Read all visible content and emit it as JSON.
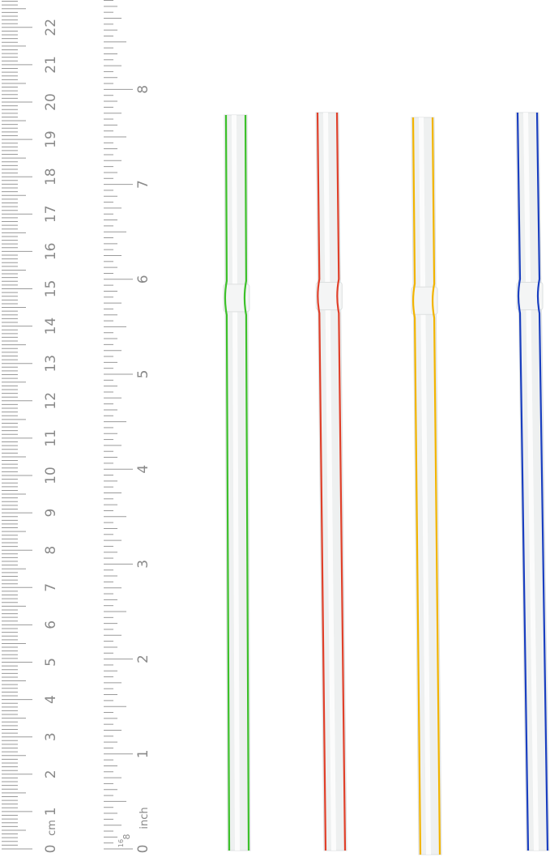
{
  "cm_ruler": {
    "unit_label": "cm",
    "labels": [
      "0",
      "1",
      "2",
      "3",
      "4",
      "5",
      "6",
      "7",
      "8",
      "9",
      "10",
      "11",
      "12",
      "13",
      "14",
      "15",
      "16",
      "17",
      "18",
      "19",
      "20",
      "21",
      "22"
    ]
  },
  "inch_ruler": {
    "unit_label": "inch",
    "fraction_labels": [
      "16",
      "8"
    ],
    "labels": [
      "0",
      "1",
      "2",
      "3",
      "4",
      "5",
      "6",
      "7",
      "8"
    ]
  },
  "straws": [
    {
      "color_name": "green",
      "stripe": "#3cc02a"
    },
    {
      "color_name": "red",
      "stripe": "#e0402a"
    },
    {
      "color_name": "yellow",
      "stripe": "#f2b400"
    },
    {
      "color_name": "blue",
      "stripe": "#1a3fc0"
    }
  ],
  "colors": {
    "tick": "#9a9a9a",
    "label": "#8a8a8a",
    "straw_body": "#eef0f0"
  }
}
